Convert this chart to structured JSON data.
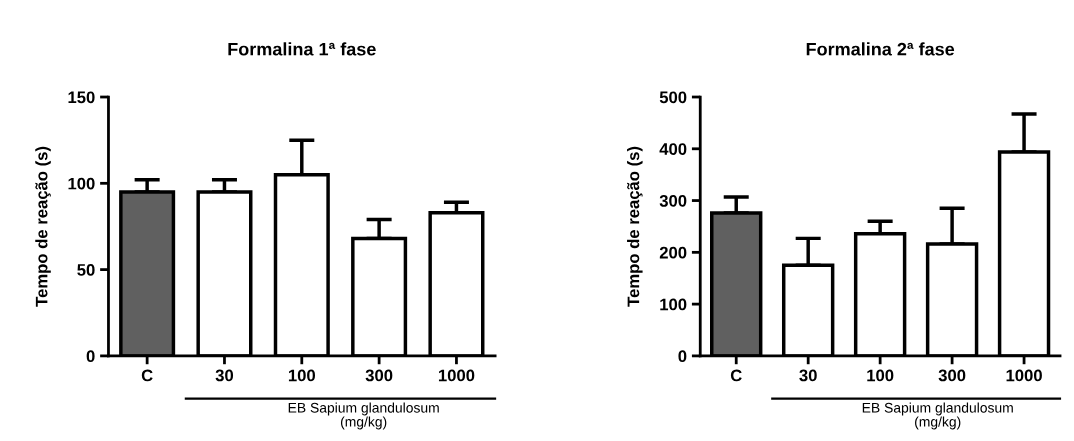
{
  "chart_data": [
    {
      "type": "bar",
      "title": "Formalina 1ª fase",
      "ylabel": "Tempo de reação (s)",
      "categories": [
        "C",
        "30",
        "100",
        "300",
        "1000"
      ],
      "values": [
        95,
        95,
        105,
        68,
        83
      ],
      "colors": [
        "#606060",
        "#ffffff",
        "#ffffff",
        "#ffffff",
        "#ffffff"
      ],
      "errors": [
        [
          95,
          102
        ],
        [
          95,
          102
        ],
        [
          105,
          125
        ],
        [
          68,
          79
        ],
        [
          83,
          89
        ]
      ],
      "ylim": [
        0,
        150
      ],
      "yticks": [
        0,
        50,
        100,
        150
      ],
      "grid": false,
      "legend": false,
      "annotations": [
        "EB Sapium glandulosum\n(mg/kg)"
      ]
    },
    {
      "type": "bar",
      "title": "Formalina 2ª fase",
      "ylabel": "Tempo de reação (s)",
      "categories": [
        "C",
        "30",
        "100",
        "300",
        "1000"
      ],
      "values": [
        276,
        175,
        236,
        216,
        394
      ],
      "colors": [
        "#606060",
        "#ffffff",
        "#ffffff",
        "#ffffff",
        "#ffffff"
      ],
      "errors": [
        [
          276,
          307
        ],
        [
          175,
          227
        ],
        [
          236,
          260
        ],
        [
          216,
          285
        ],
        [
          394,
          467
        ]
      ],
      "ylim": [
        0,
        500
      ],
      "yticks": [
        0,
        100,
        200,
        300,
        400,
        500
      ],
      "grid": false,
      "legend": false,
      "annotations": [
        "EB Sapium glandulosum\n(mg/kg)"
      ]
    }
  ]
}
